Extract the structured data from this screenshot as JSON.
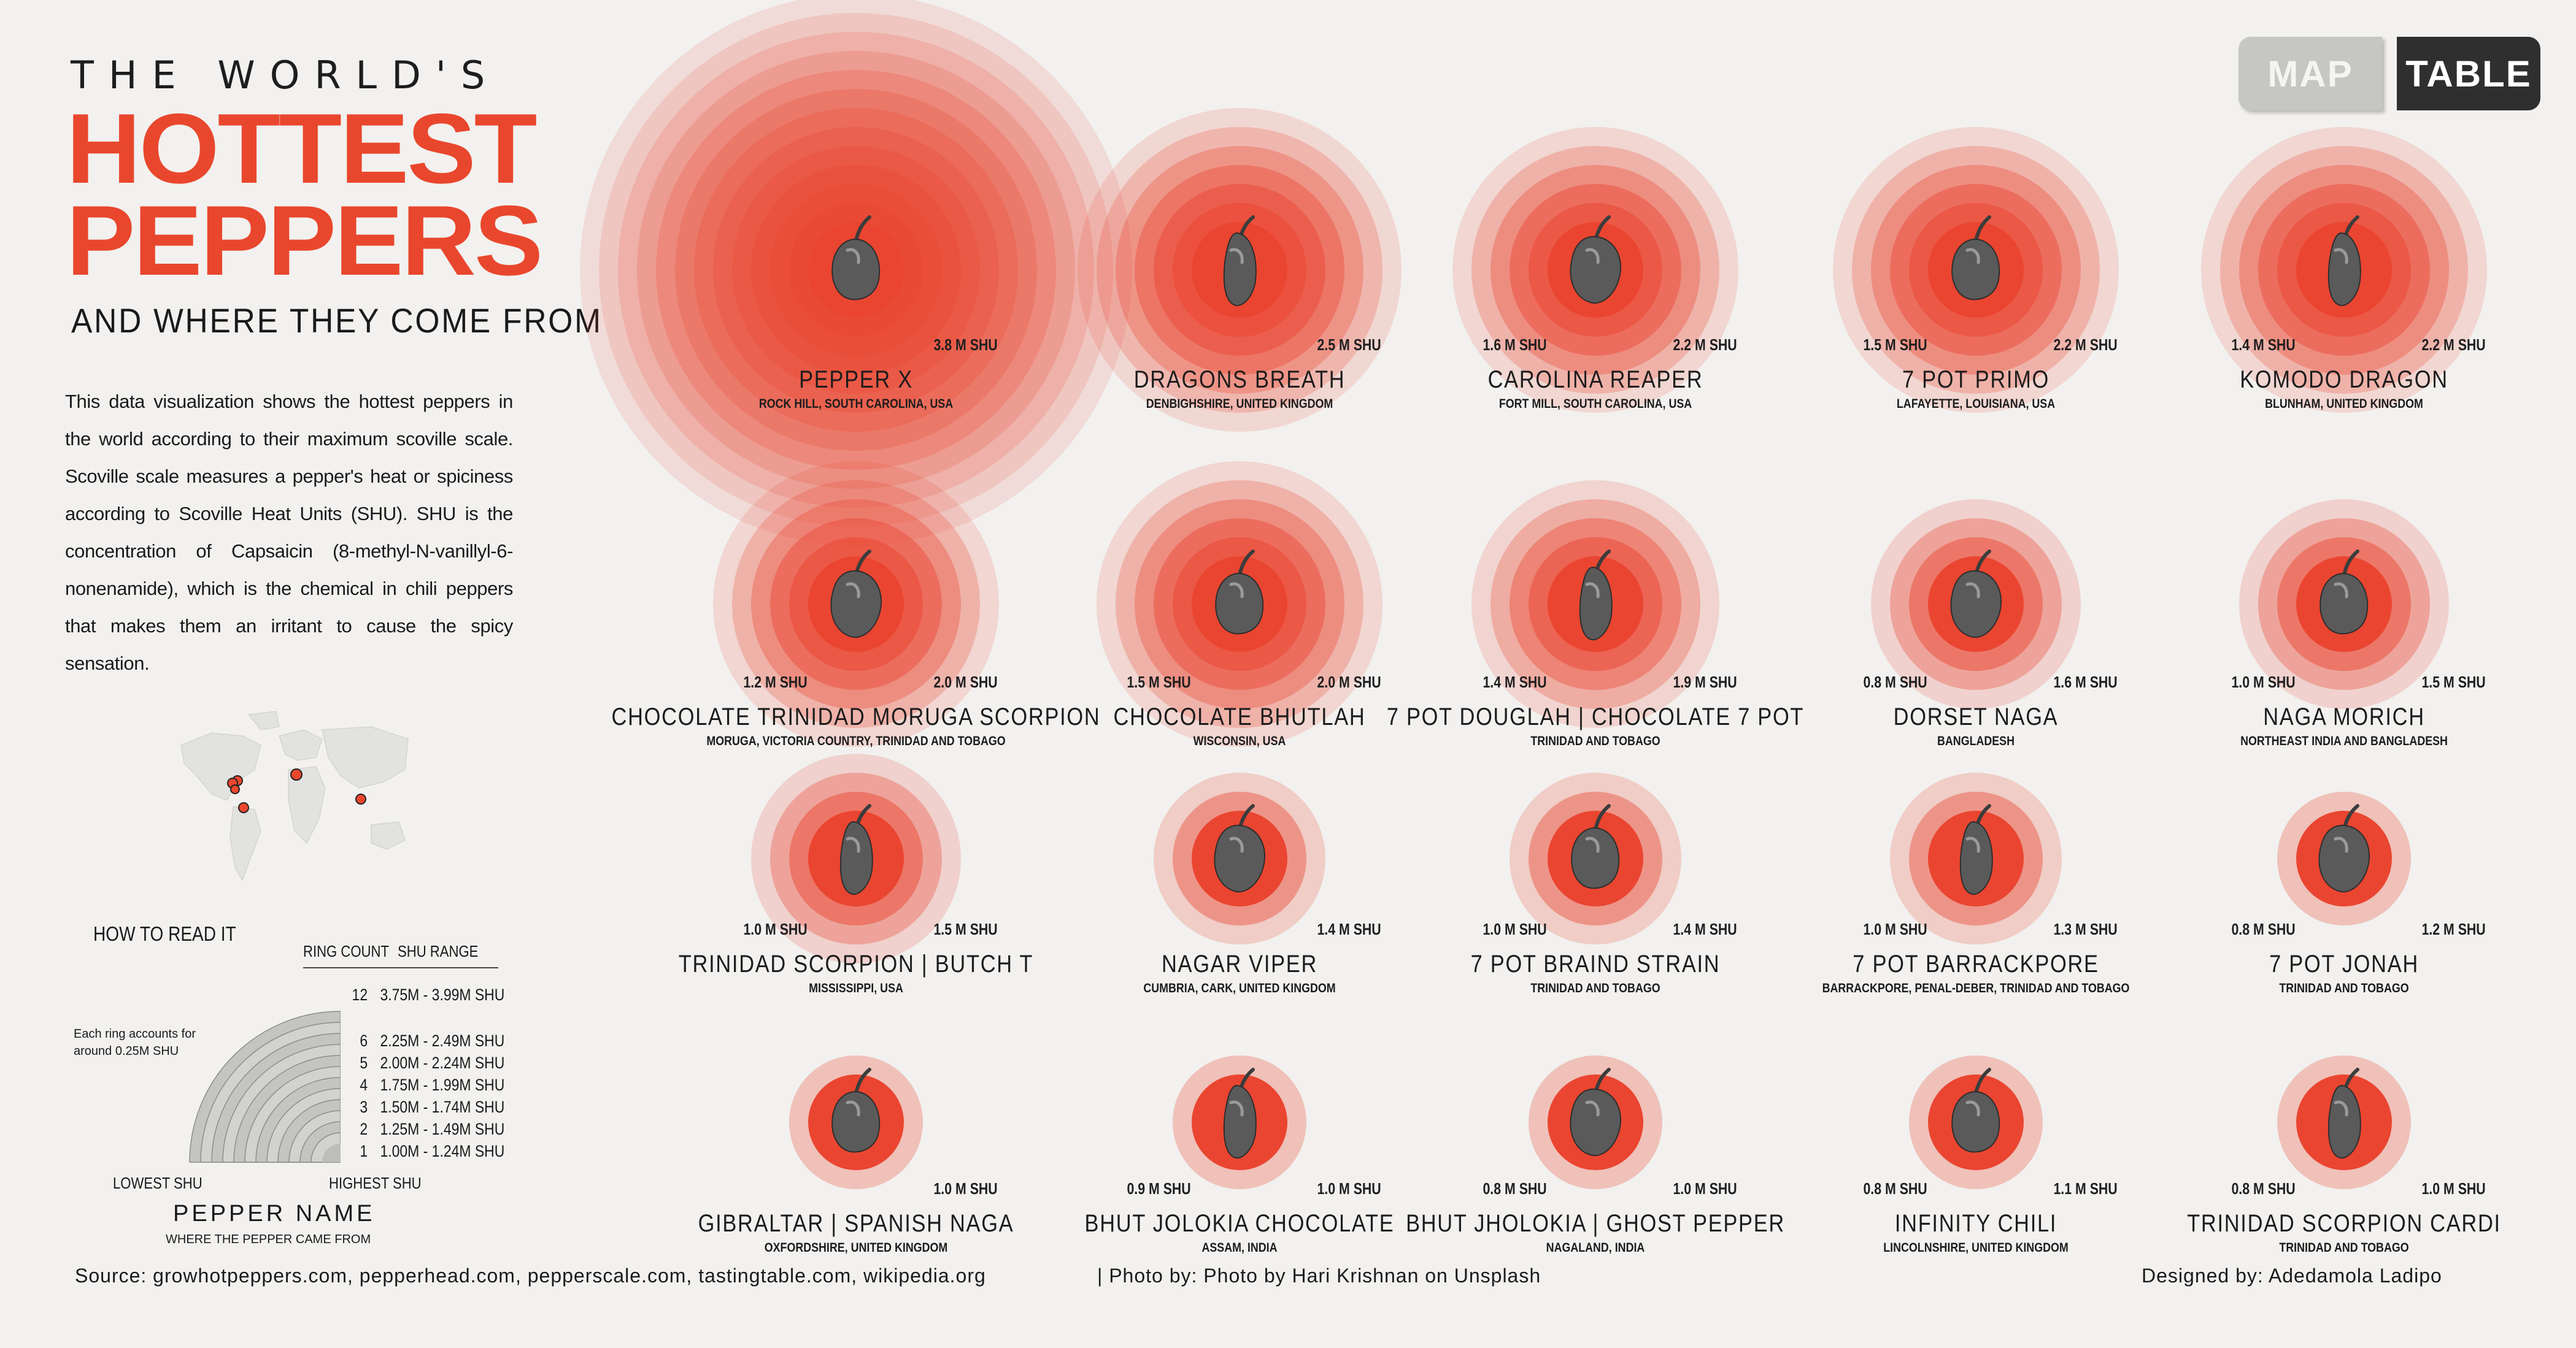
{
  "header": {
    "title_top": "THE WORLD'S",
    "title_line1": "HOTTEST",
    "title_line2": "PEPPERS",
    "subtitle": "AND WHERE THEY COME FROM",
    "intro": "This data visualization shows the hottest peppers in the world according to their maximum scoville scale. Scoville scale measures a pepper's heat or spiciness according to Scoville Heat Units (SHU). SHU is the concentration of Capsaicin (8-methyl-N-vanillyl-6-nonenamide), which is the chemical in chili peppers that makes them an irritant to cause the spicy sensation."
  },
  "toggle": {
    "map_label": "MAP",
    "table_label": "TABLE",
    "active": "TABLE"
  },
  "legend": {
    "title": "HOW TO READ IT",
    "col_ring_count": "RING COUNT",
    "col_shu_range": "SHU RANGE",
    "note": "Each ring accounts for around 0.25M SHU",
    "rows": [
      {
        "count": "12",
        "range": "3.75M - 3.99M SHU"
      },
      {
        "count": "6",
        "range": "2.25M - 2.49M SHU"
      },
      {
        "count": "5",
        "range": "2.00M - 2.24M SHU"
      },
      {
        "count": "4",
        "range": "1.75M - 1.99M SHU"
      },
      {
        "count": "3",
        "range": "1.50M - 1.74M SHU"
      },
      {
        "count": "2",
        "range": "1.25M - 1.49M SHU"
      },
      {
        "count": "1",
        "range": "1.00M - 1.24M SHU"
      }
    ],
    "lowest": "LOWEST SHU",
    "highest": "HIGHEST SHU",
    "pepper_name": "PEPPER NAME",
    "pepper_origin": "WHERE THE PEPPER CAME FROM"
  },
  "peppers": [
    {
      "name": "PEPPER X",
      "origin": "ROCK HILL, SOUTH CAROLINA, USA",
      "min": "",
      "max": "3.8 M SHU",
      "max_shu": 3.8,
      "rings": 12
    },
    {
      "name": "DRAGONS BREATH",
      "origin": "DENBIGHSHIRE, UNITED KINGDOM",
      "min": "",
      "max": "2.5 M SHU",
      "max_shu": 2.5,
      "rings": 6
    },
    {
      "name": "CAROLINA REAPER",
      "origin": "FORT MILL, SOUTH CAROLINA, USA",
      "min": "1.6 M SHU",
      "max": "2.2 M SHU",
      "max_shu": 2.2,
      "rings": 5
    },
    {
      "name": "7 POT PRIMO",
      "origin": "LAFAYETTE, LOUISIANA, USA",
      "min": "1.5 M SHU",
      "max": "2.2 M SHU",
      "max_shu": 2.2,
      "rings": 5
    },
    {
      "name": "KOMODO DRAGON",
      "origin": "BLUNHAM, UNITED KINGDOM",
      "min": "1.4 M SHU",
      "max": "2.2 M SHU",
      "max_shu": 2.2,
      "rings": 5
    },
    {
      "name": "CHOCOLATE TRINIDAD MORUGA SCORPION",
      "origin": "MORUGA, VICTORIA COUNTRY, TRINIDAD AND TOBAGO",
      "min": "1.2 M SHU",
      "max": "2.0 M SHU",
      "max_shu": 2.0,
      "rings": 5
    },
    {
      "name": "CHOCOLATE BHUTLAH",
      "origin": "WISCONSIN, USA",
      "min": "1.5 M SHU",
      "max": "2.0 M SHU",
      "max_shu": 2.0,
      "rings": 5
    },
    {
      "name": "7 POT DOUGLAH | CHOCOLATE 7 POT",
      "origin": "TRINIDAD AND TOBAGO",
      "min": "1.4 M SHU",
      "max": "1.9 M SHU",
      "max_shu": 1.9,
      "rings": 4
    },
    {
      "name": "DORSET NAGA",
      "origin": "BANGLADESH",
      "min": "0.8 M SHU",
      "max": "1.6 M SHU",
      "max_shu": 1.6,
      "rings": 3
    },
    {
      "name": "NAGA MORICH",
      "origin": "NORTHEAST INDIA AND BANGLADESH",
      "min": "1.0 M SHU",
      "max": "1.5 M SHU",
      "max_shu": 1.5,
      "rings": 3
    },
    {
      "name": "TRINIDAD SCORPION | BUTCH T",
      "origin": "MISSISSIPPI, USA",
      "min": "1.0 M SHU",
      "max": "1.5 M SHU",
      "max_shu": 1.5,
      "rings": 3
    },
    {
      "name": "NAGAR VIPER",
      "origin": "CUMBRIA, CARK, UNITED KINGDOM",
      "min": "",
      "max": "1.4 M SHU",
      "max_shu": 1.4,
      "rings": 2
    },
    {
      "name": "7 POT BRAIND STRAIN",
      "origin": "TRINIDAD AND TOBAGO",
      "min": "1.0 M SHU",
      "max": "1.4 M SHU",
      "max_shu": 1.4,
      "rings": 2
    },
    {
      "name": "7 POT BARRACKPORE",
      "origin": "BARRACKPORE, PENAL-DEBER, TRINIDAD AND TOBAGO",
      "min": "1.0 M SHU",
      "max": "1.3 M SHU",
      "max_shu": 1.3,
      "rings": 2
    },
    {
      "name": "7 POT JONAH",
      "origin": "TRINIDAD AND TOBAGO",
      "min": "0.8 M SHU",
      "max": "1.2 M SHU",
      "max_shu": 1.2,
      "rings": 1
    },
    {
      "name": "GIBRALTAR | SPANISH NAGA",
      "origin": "OXFORDSHIRE, UNITED KINGDOM",
      "min": "",
      "max": "1.0 M SHU",
      "max_shu": 1.0,
      "rings": 1
    },
    {
      "name": "BHUT JOLOKIA CHOCOLATE",
      "origin": "ASSAM, INDIA",
      "min": "0.9 M SHU",
      "max": "1.0 M SHU",
      "max_shu": 1.0,
      "rings": 1
    },
    {
      "name": "BHUT JHOLOKIA | GHOST PEPPER",
      "origin": "NAGALAND, INDIA",
      "min": "0.8 M SHU",
      "max": "1.0 M SHU",
      "max_shu": 1.0,
      "rings": 1
    },
    {
      "name": "INFINITY CHILI",
      "origin": "LINCOLNSHIRE, UNITED KINGDOM",
      "min": "0.8 M SHU",
      "max": "1.1 M SHU",
      "max_shu": 1.1,
      "rings": 1
    },
    {
      "name": "TRINIDAD SCORPION CARDI",
      "origin": "TRINIDAD AND TOBAGO",
      "min": "0.8 M SHU",
      "max": "1.0 M SHU",
      "max_shu": 1.0,
      "rings": 1
    }
  ],
  "footer": {
    "source": "Source: growhotpeppers.com, pepperhead.com, pepperscale.com, tastingtable.com, wikipedia.org",
    "photo": "| Photo by: Photo by Hari Krishnan on Unsplash",
    "designer": "Designed by: Adedamola Ladipo"
  },
  "colors": {
    "accent": "#e9472d",
    "ring": "#ea4530",
    "background": "#f2f1ef",
    "toggle_active": "#2f2f2f",
    "toggle_inactive": "#c6c6c4"
  },
  "icons": {
    "pepper_photo": "chili-pepper-icon",
    "map_marker": "map-marker-icon"
  }
}
